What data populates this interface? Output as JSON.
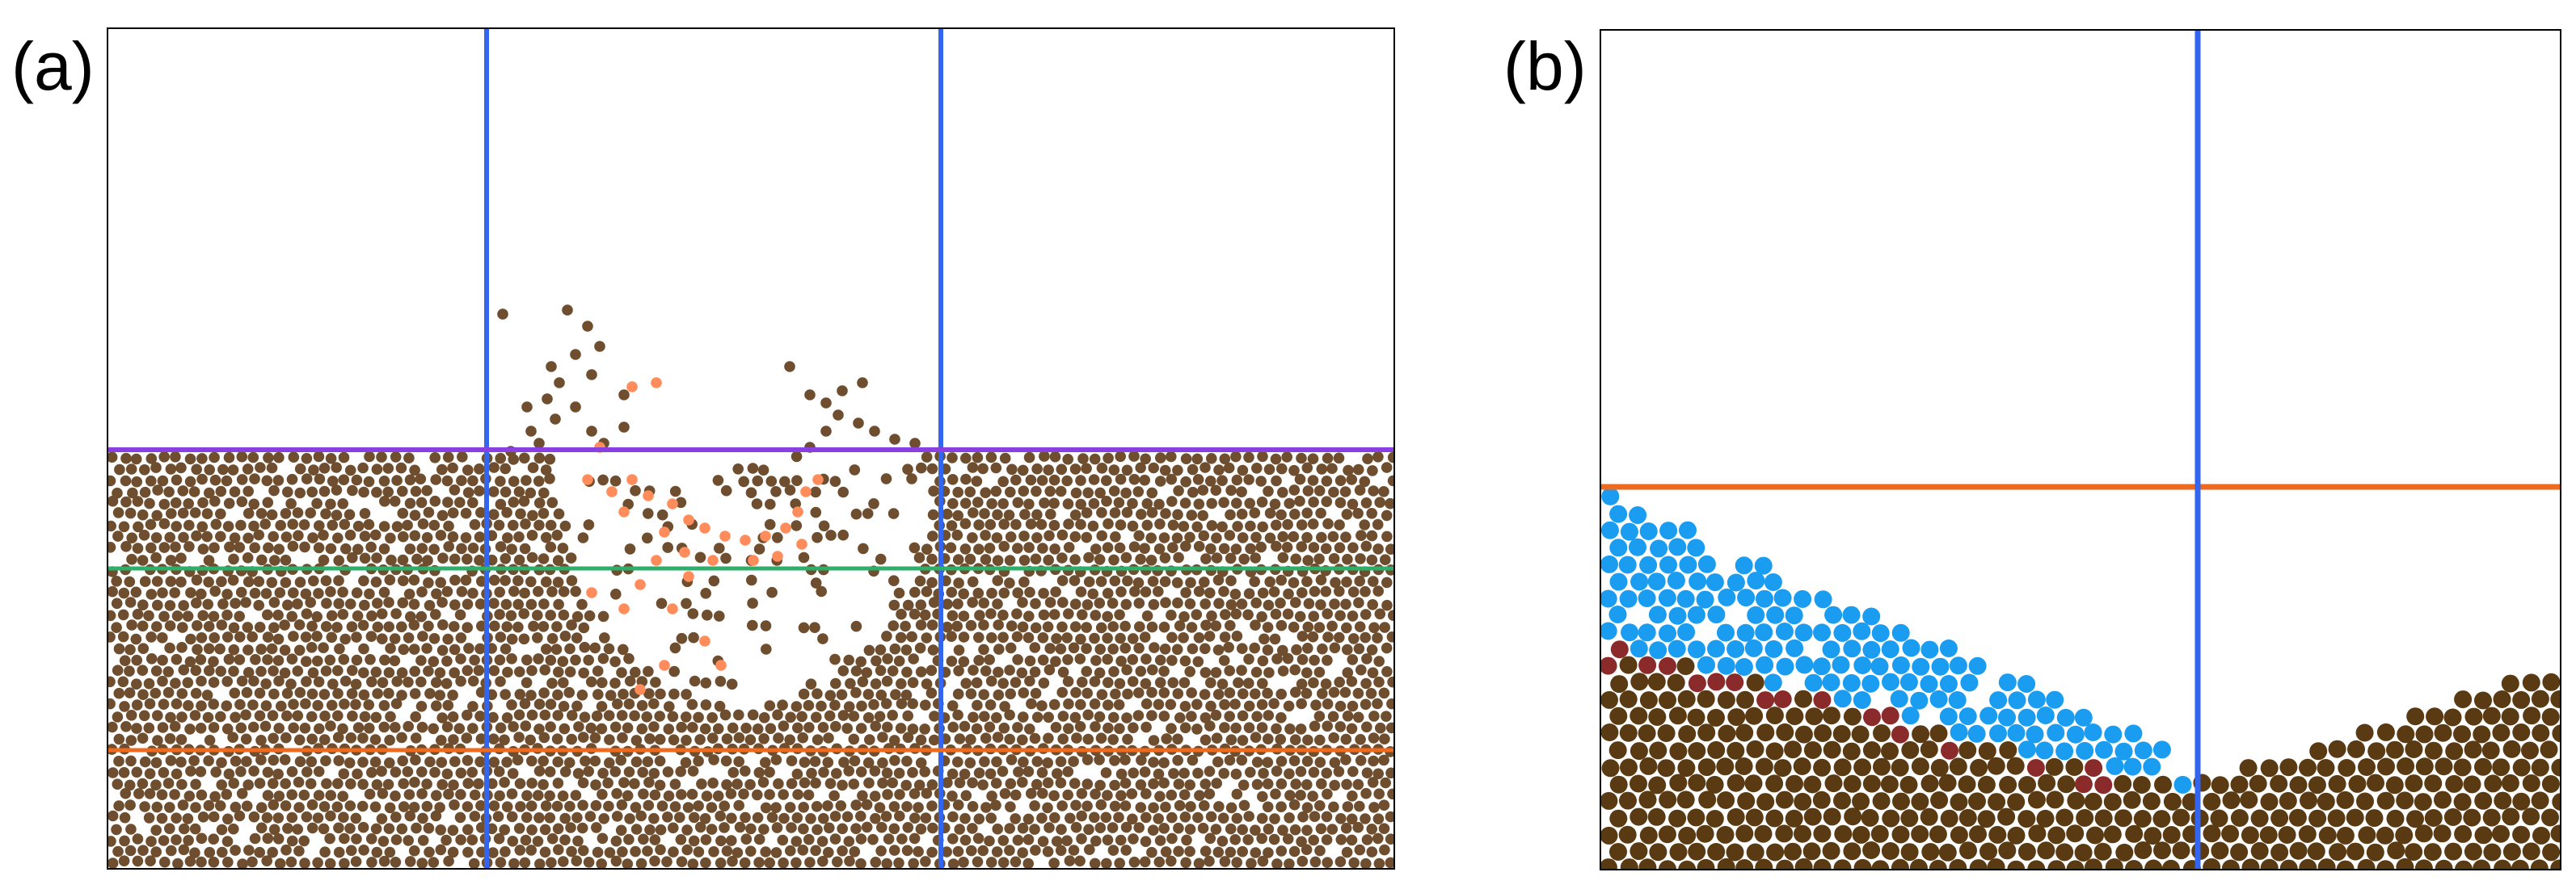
{
  "panels": [
    {
      "label": "(a)",
      "lines": {
        "vertical_color": "#3366ee",
        "top_surface_color": "#8a3fe0",
        "mid_color": "#2fae6a",
        "low_color": "#ee6a1f"
      },
      "particle_colors": {
        "grain": "#6e4e2e",
        "ejecta": "#ff8c5a"
      }
    },
    {
      "label": "(b)",
      "lines": {
        "vertical_color": "#3366ee",
        "surface_color": "#ee6a1f"
      },
      "particle_colors": {
        "grain": "#5a3a12",
        "fluid": "#1a9cf0",
        "interface": "#8b2a2a"
      }
    }
  ]
}
